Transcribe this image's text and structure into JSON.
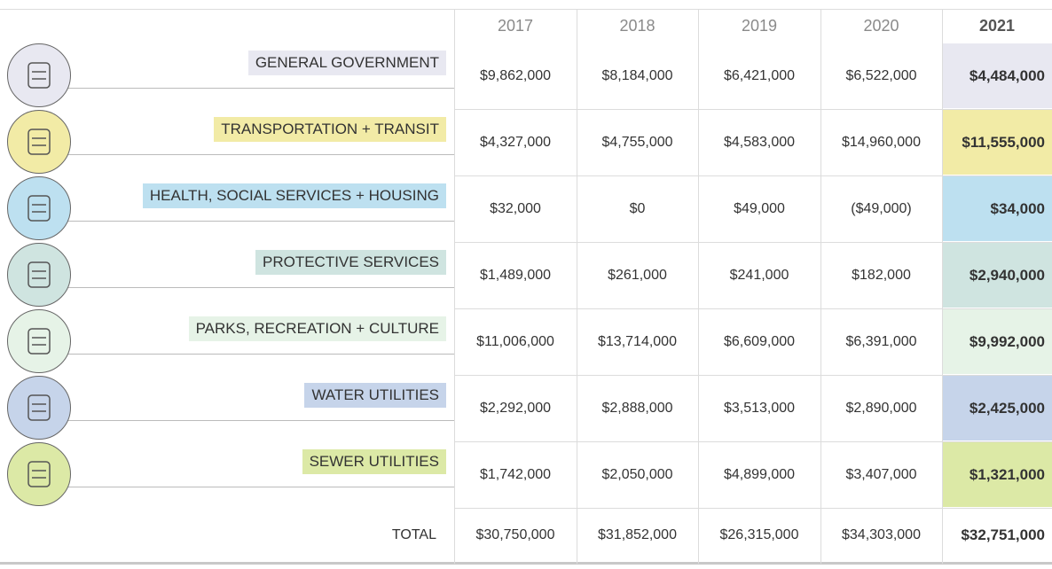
{
  "table": {
    "header": [
      "2017",
      "2018",
      "2019",
      "2020",
      "2021"
    ],
    "rows": [
      {
        "label": "GENERAL GOVERNMENT",
        "values": [
          "$9,862,000",
          "$8,184,000",
          "$6,421,000",
          "$6,522,000",
          "$4,484,000"
        ]
      },
      {
        "label": "TRANSPORTATION + TRANSIT",
        "values": [
          "$4,327,000",
          "$4,755,000",
          "$4,583,000",
          "$14,960,000",
          "$11,555,000"
        ]
      },
      {
        "label": "HEALTH, SOCIAL SERVICES + HOUSING",
        "values": [
          "$32,000",
          "$0",
          "$49,000",
          "($49,000)",
          "$34,000"
        ]
      },
      {
        "label": "PROTECTIVE SERVICES",
        "values": [
          "$1,489,000",
          "$261,000",
          "$241,000",
          "$182,000",
          "$2,940,000"
        ]
      },
      {
        "label": "PARKS, RECREATION + CULTURE",
        "values": [
          "$11,006,000",
          "$13,714,000",
          "$6,609,000",
          "$6,391,000",
          "$9,992,000"
        ]
      },
      {
        "label": "WATER UTILITIES",
        "values": [
          "$2,292,000",
          "$2,888,000",
          "$3,513,000",
          "$2,890,000",
          "$2,425,000"
        ]
      },
      {
        "label": "SEWER UTILITIES",
        "values": [
          "$1,742,000",
          "$2,050,000",
          "$4,899,000",
          "$3,407,000",
          "$1,321,000"
        ]
      }
    ],
    "total": {
      "label": "TOTAL",
      "values": [
        "$30,750,000",
        "$31,852,000",
        "$26,315,000",
        "$34,303,000",
        "$32,751,000"
      ]
    }
  }
}
